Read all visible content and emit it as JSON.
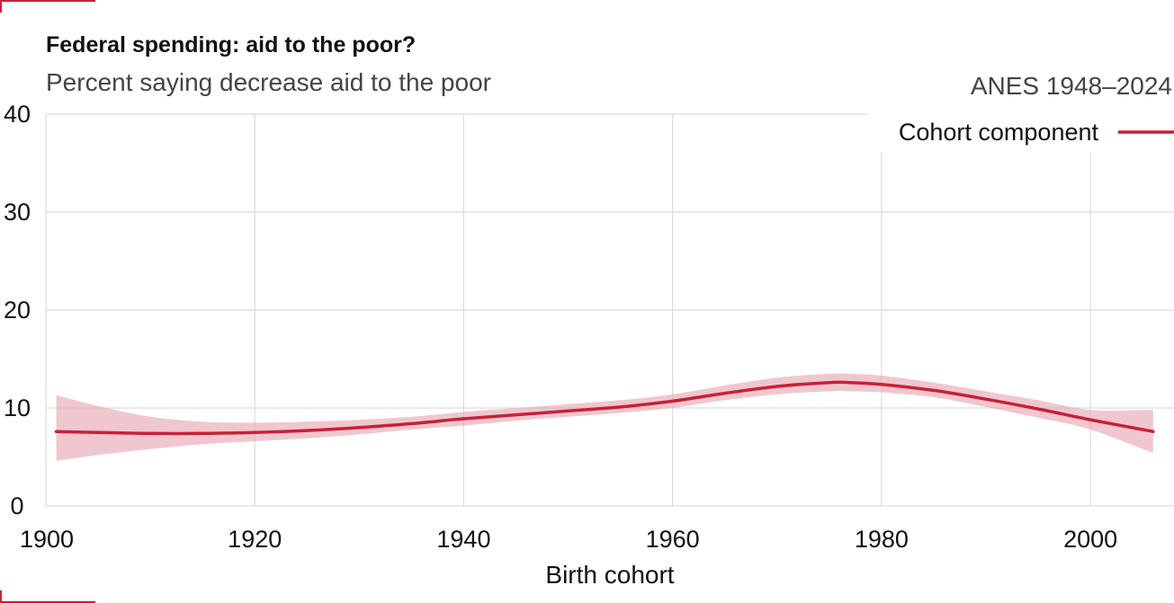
{
  "header": {
    "title": "Federal spending: aid to the poor?",
    "subtitle": "Percent saying decrease aid to the poor",
    "source": "ANES 1948–2024"
  },
  "colors": {
    "accent": "#c8203a",
    "band": "#e8a9b3",
    "grid": "#dcdcdc"
  },
  "chart_data": {
    "type": "line",
    "title": "Federal spending: aid to the poor?",
    "subtitle": "Percent saying decrease aid to the poor",
    "xlabel": "Birth cohort",
    "ylabel": "",
    "xlim": [
      1900,
      2008
    ],
    "ylim": [
      0,
      40
    ],
    "x_ticks": [
      1900,
      1920,
      1940,
      1960,
      1980,
      2000
    ],
    "y_ticks": [
      0,
      10,
      20,
      30,
      40
    ],
    "grid": true,
    "legend_position": "top-right",
    "series": [
      {
        "name": "Cohort component",
        "x": [
          1901,
          1905,
          1910,
          1915,
          1920,
          1925,
          1930,
          1935,
          1940,
          1945,
          1950,
          1955,
          1960,
          1965,
          1970,
          1975,
          1977,
          1980,
          1985,
          1990,
          1995,
          2000,
          2006
        ],
        "y": [
          7.6,
          7.5,
          7.4,
          7.4,
          7.5,
          7.7,
          8.0,
          8.4,
          8.9,
          9.3,
          9.7,
          10.1,
          10.7,
          11.5,
          12.2,
          12.6,
          12.6,
          12.4,
          11.8,
          10.9,
          9.9,
          8.8,
          7.6
        ],
        "lower": [
          4.6,
          5.2,
          5.8,
          6.3,
          6.6,
          6.9,
          7.3,
          7.8,
          8.2,
          8.7,
          9.1,
          9.5,
          10.0,
          10.8,
          11.4,
          11.7,
          11.7,
          11.6,
          11.1,
          10.1,
          9.0,
          7.8,
          5.4
        ],
        "upper": [
          11.3,
          10.2,
          9.1,
          8.6,
          8.5,
          8.6,
          8.8,
          9.1,
          9.6,
          10.0,
          10.4,
          10.8,
          11.4,
          12.3,
          13.1,
          13.5,
          13.5,
          13.3,
          12.6,
          11.7,
          10.8,
          9.8,
          9.8
        ]
      }
    ]
  }
}
